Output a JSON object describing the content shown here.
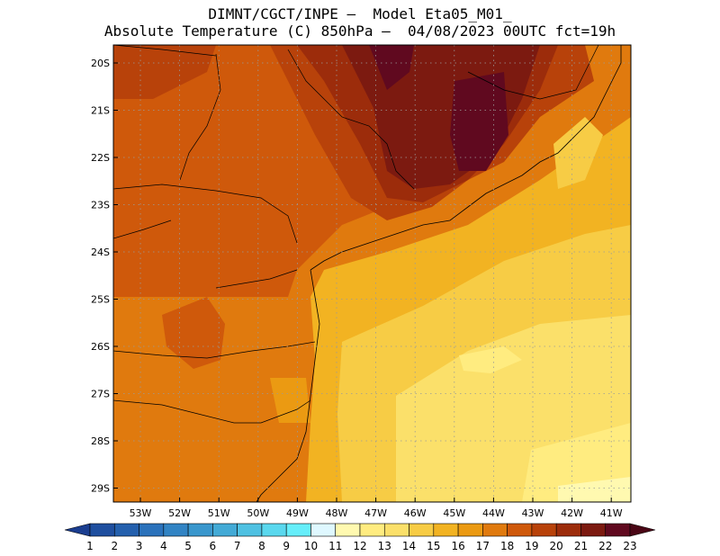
{
  "header": {
    "line1": "DIMNT/CGCT/INPE –  Model Eta05_M01_",
    "line2": "Absolute Temperature (C) 850hPa –  04/08/2023 00UTC fct=19h"
  },
  "map": {
    "lat_labels": [
      "20S",
      "21S",
      "22S",
      "23S",
      "24S",
      "25S",
      "26S",
      "27S",
      "28S",
      "29S"
    ],
    "lon_labels": [
      "53W",
      "52W",
      "51W",
      "50W",
      "49W",
      "48W",
      "47W",
      "46W",
      "45W",
      "44W",
      "43W",
      "42W",
      "41W"
    ]
  },
  "colorbar": {
    "labels": [
      "1",
      "2",
      "3",
      "4",
      "5",
      "6",
      "7",
      "8",
      "9",
      "10",
      "11",
      "12",
      "13",
      "14",
      "15",
      "16",
      "17",
      "18",
      "19",
      "20",
      "21",
      "22",
      "23"
    ],
    "colors": [
      "#1a3d8f",
      "#1f4f9f",
      "#2460ad",
      "#2b72bb",
      "#3284c4",
      "#3a97cd",
      "#43aad6",
      "#4fc1e2",
      "#5ad8ee",
      "#66eefa",
      "#dff8ff",
      "#fff9b0",
      "#ffec80",
      "#fbe06a",
      "#f7cc45",
      "#f2b322",
      "#eb9a12",
      "#e07a0e",
      "#cf590b",
      "#b8420a",
      "#9c2c0b",
      "#7c1a10",
      "#60091f",
      "#4a0615"
    ]
  }
}
